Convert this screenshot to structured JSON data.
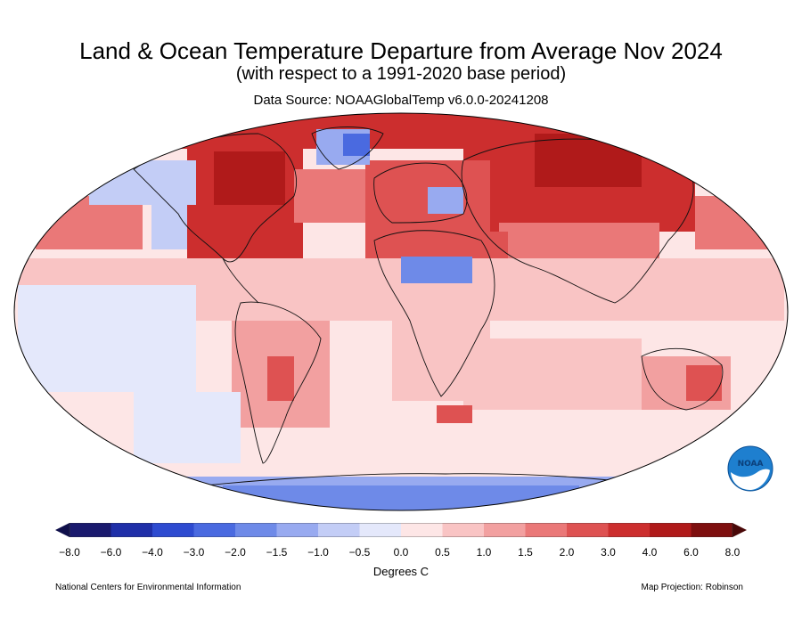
{
  "header": {
    "title": "Land & Ocean Temperature Departure from Average Nov 2024",
    "subtitle": "(with respect to a 1991-2020 base period)",
    "source": "Data Source: NOAAGlobalTemp v6.0.0-20241208"
  },
  "colorbar": {
    "label": "Degrees C",
    "ticks": [
      "−8.0",
      "−6.0",
      "−4.0",
      "−3.0",
      "−2.0",
      "−1.5",
      "−1.0",
      "−0.5",
      "0.0",
      "0.5",
      "1.0",
      "1.5",
      "2.0",
      "3.0",
      "4.0",
      "6.0",
      "8.0"
    ],
    "colors": [
      "#1a1a6e",
      "#1f2fa8",
      "#2e4bd0",
      "#4a6ae0",
      "#6e8ae8",
      "#98aaf0",
      "#c3cdf6",
      "#e4e8fb",
      "#fde6e6",
      "#f9c4c4",
      "#f2a0a0",
      "#ea7878",
      "#de5252",
      "#cc2e2e",
      "#b01a1a",
      "#7e0f0f"
    ]
  },
  "footer": {
    "left": "National Centers for Environmental Information",
    "right": "Map Projection: Robinson"
  },
  "logo": {
    "text": "NOAA",
    "icon": "noaa-logo"
  },
  "map": {
    "projection": "Robinson",
    "anomaly_colors": {
      "strong_warm": "#b01a1a",
      "warm": "#de5252",
      "mild_warm": "#f2a0a0",
      "slight_warm": "#fde6e6",
      "slight_cool": "#e4e8fb",
      "cool": "#98aaf0",
      "strong_cool": "#4a6ae0"
    }
  }
}
